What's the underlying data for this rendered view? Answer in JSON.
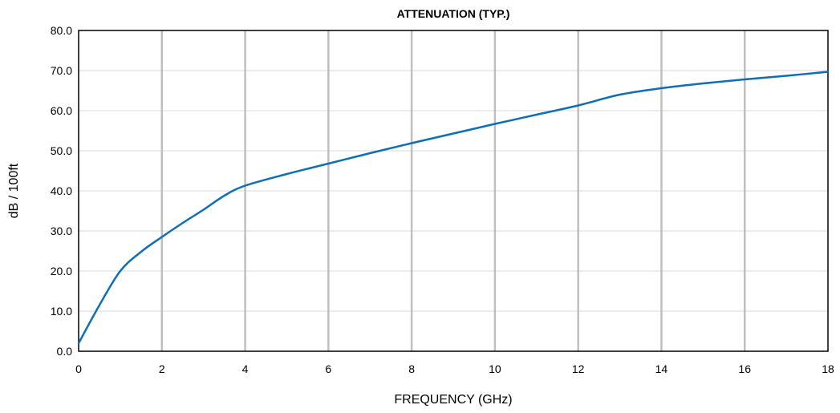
{
  "chart_data": {
    "type": "line",
    "title": "ATTENUATION (TYP.)",
    "xlabel": "FREQUENCY  (GHz)",
    "ylabel": "dB / 100ft",
    "xlim": [
      0,
      18
    ],
    "ylim": [
      0,
      80
    ],
    "x_ticks": [
      "0",
      "2",
      "4",
      "6",
      "8",
      "10",
      "12",
      "14",
      "16",
      "18"
    ],
    "y_ticks": [
      "0.0",
      "10.0",
      "20.0",
      "30.0",
      "40.0",
      "50.0",
      "60.0",
      "70.0",
      "80.0"
    ],
    "grid": {
      "vertical": true,
      "horizontal": true
    },
    "colors": {
      "series": "#0e6eb8",
      "vertical_grid": "#bfbfbf",
      "horizontal_grid": "#d9d9d9",
      "axis": "#000000"
    },
    "series": [
      {
        "x": [
          0,
          0.5,
          1.0,
          1.5,
          2.0,
          2.5,
          3.0,
          3.5,
          4.0,
          5.0,
          6.0,
          7.0,
          8.0,
          9.0,
          10.0,
          11.0,
          12.0,
          13.0,
          14.0,
          15.0,
          16.0,
          17.0,
          18.0
        ],
        "y": [
          2.0,
          11.5,
          20.0,
          24.8,
          28.5,
          32.0,
          35.3,
          38.8,
          41.3,
          44.2,
          46.8,
          49.4,
          51.9,
          54.3,
          56.7,
          59.0,
          61.3,
          64.0,
          65.6,
          66.8,
          67.8,
          68.7,
          69.7
        ]
      }
    ]
  }
}
